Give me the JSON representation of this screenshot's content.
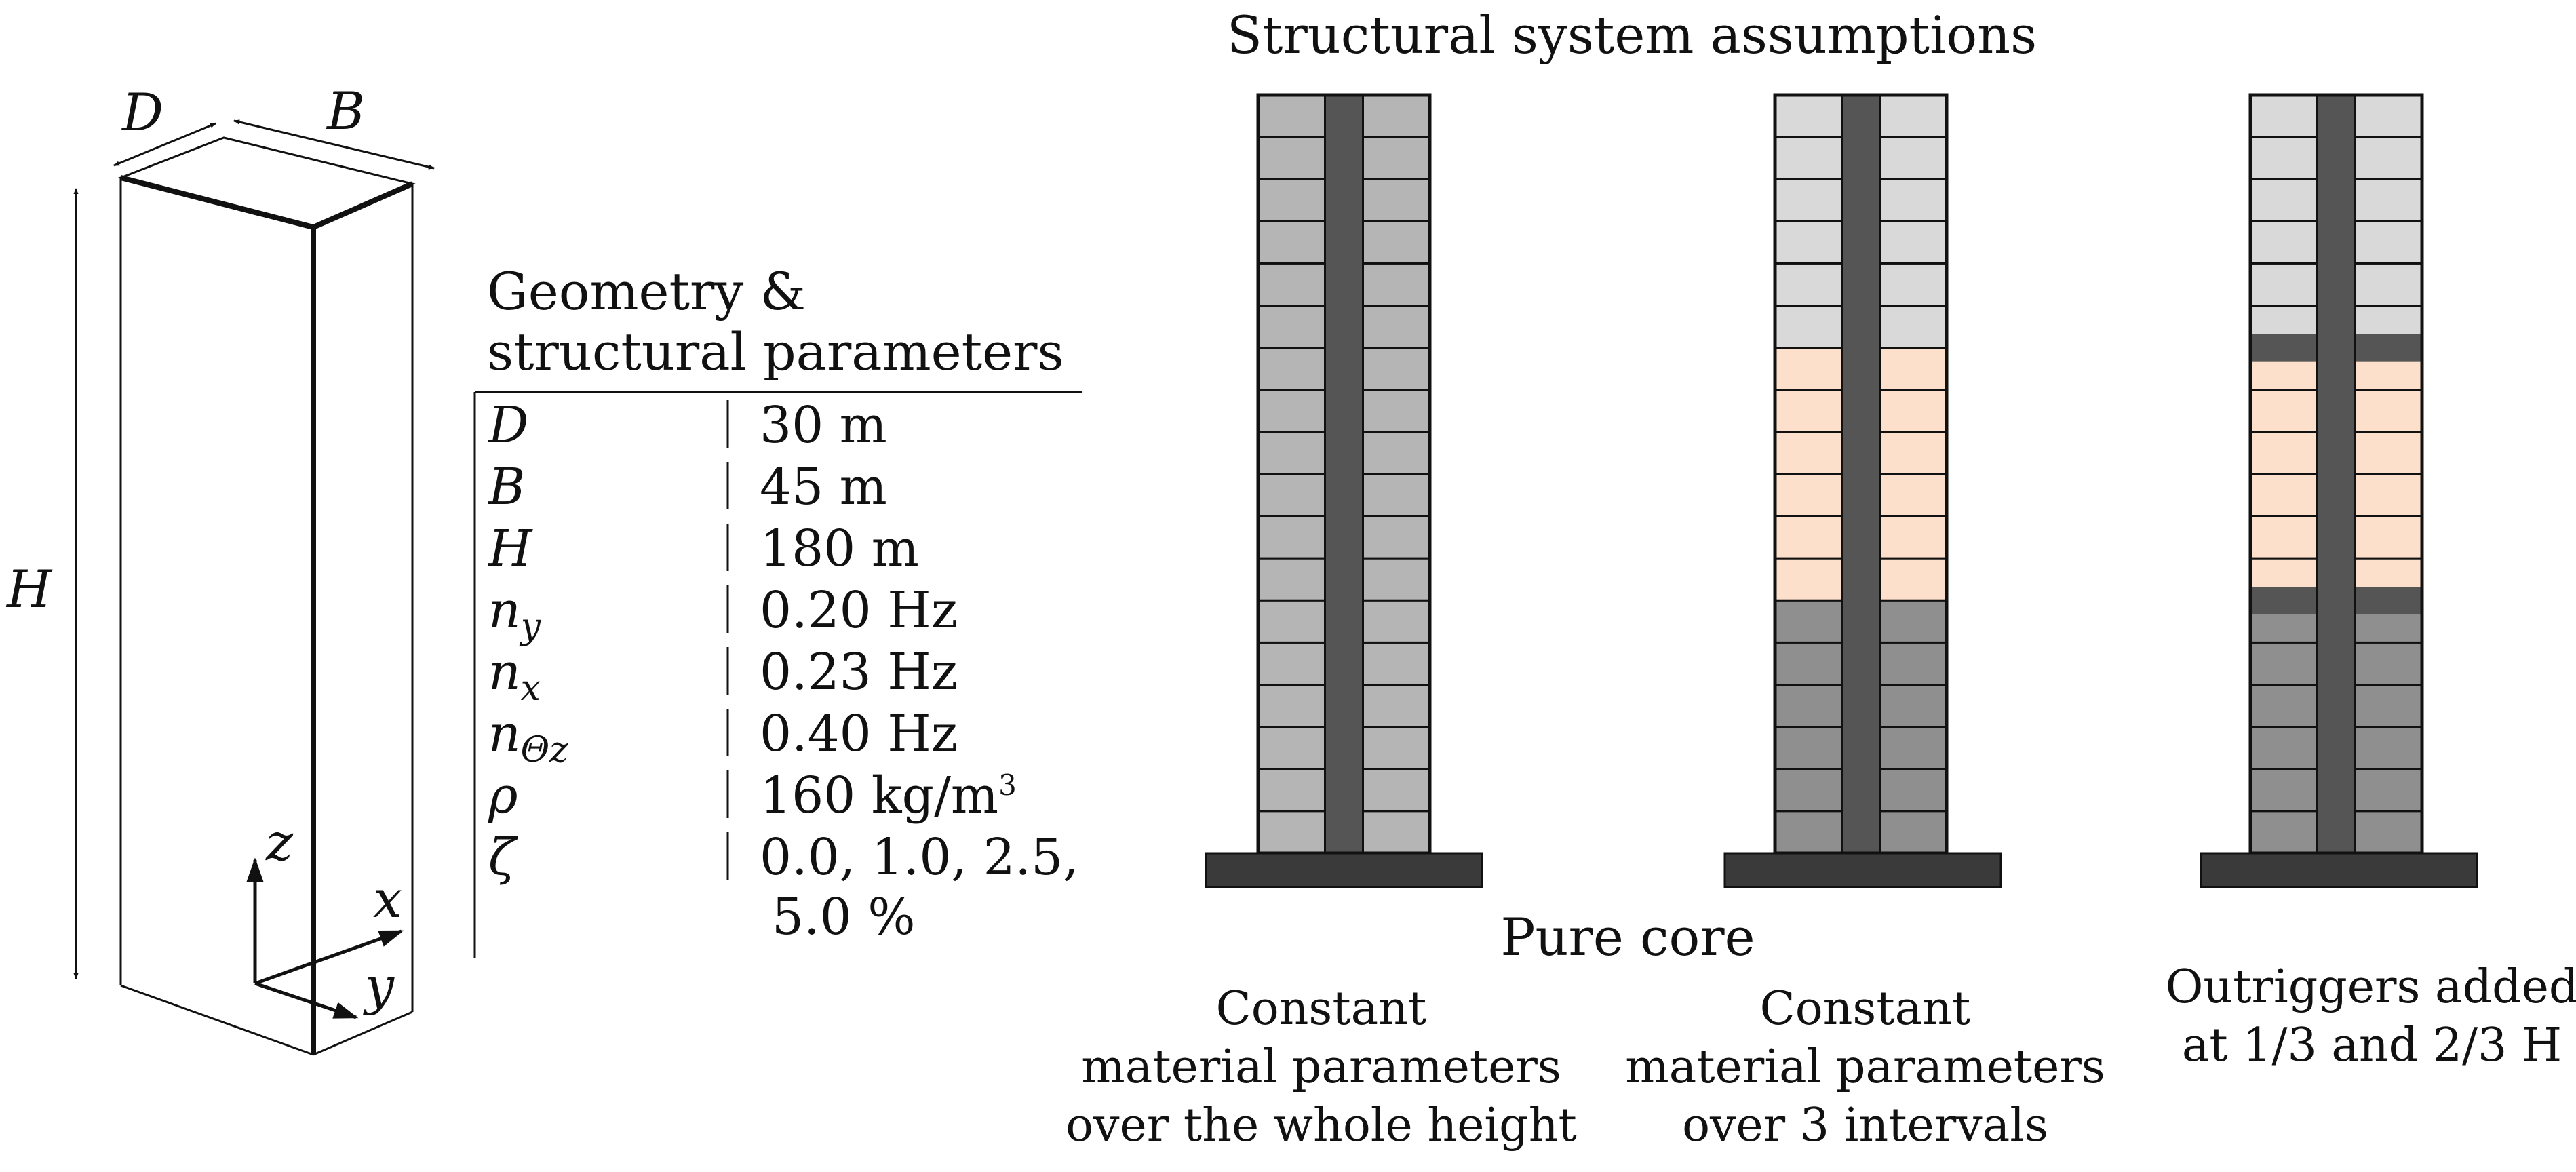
{
  "geometry_figure": {
    "dim_d": "D",
    "dim_b": "B",
    "dim_h": "H",
    "axis_z": "z",
    "axis_x": "x",
    "axis_y": "y"
  },
  "parameter_table": {
    "title_line1": "Geometry &",
    "title_line2": "structural parameters",
    "rows": [
      {
        "sym": "D",
        "sub": "",
        "value": "30 m"
      },
      {
        "sym": "B",
        "sub": "",
        "value": "45 m"
      },
      {
        "sym": "H",
        "sub": "",
        "value": "180 m"
      },
      {
        "sym": "n",
        "sub": "y",
        "value": "0.20 Hz"
      },
      {
        "sym": "n",
        "sub": "x",
        "value": "0.23 Hz"
      },
      {
        "sym": "n",
        "sub": "Θz",
        "value": "0.40 Hz"
      },
      {
        "sym": "ρ",
        "sub": "",
        "value": "160 kg/m",
        "sup": "3"
      },
      {
        "sym": "ζ",
        "sub": "",
        "value": "0.0, 1.0, 2.5,",
        "value_line2": "5.0 %"
      }
    ]
  },
  "structural_systems": {
    "title": "Structural system assumptions",
    "group_label": "Pure core",
    "buildings": [
      {
        "caption": [
          "Constant",
          "material parameters",
          "over the whole height"
        ]
      },
      {
        "caption": [
          "Constant",
          "material parameters",
          "over 3 intervals"
        ]
      },
      {
        "caption": [
          "Outriggers added",
          "at 1/3 and 2/3 H"
        ]
      }
    ]
  },
  "colors": {
    "core": "#555555",
    "base": "#3a3a3a",
    "uniform_panel": "#b5b5b5",
    "upper_interval": "#d9d9d9",
    "middle_interval": "#fde0cb",
    "lower_interval": "#8f8f8f",
    "outrigger": "#555555"
  }
}
